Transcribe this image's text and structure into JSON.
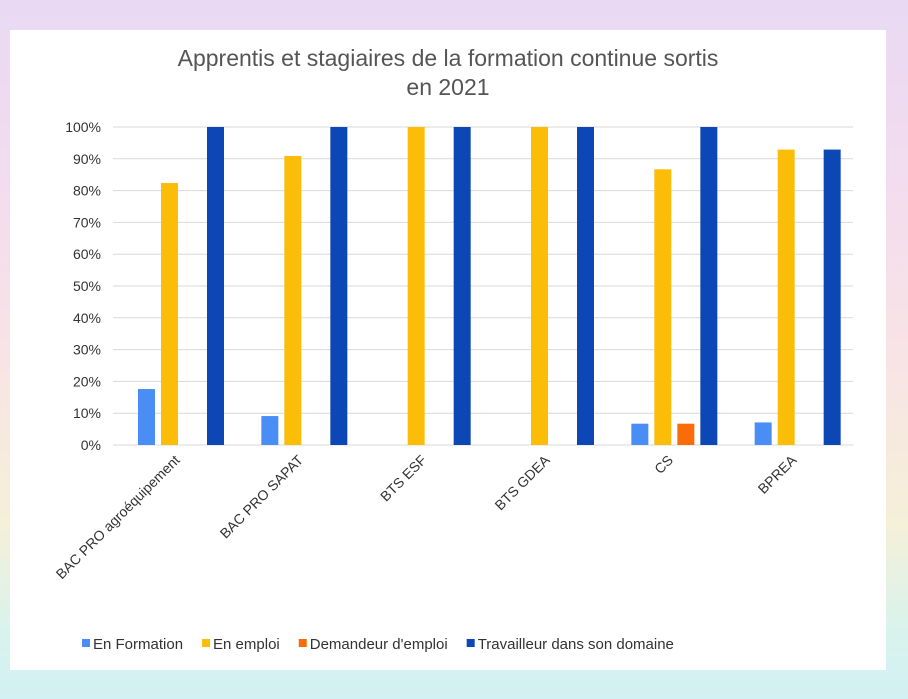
{
  "chart_data": {
    "type": "bar",
    "title": "Apprentis et stagiaires de la formation continue sortis en 2021",
    "title_lines": [
      "Apprentis et stagiaires de la formation continue sortis",
      "en 2021"
    ],
    "categories": [
      "BAC PRO agroéquipement",
      "BAC PRO SAPAT",
      "BTS ESF",
      "BTS GDEA",
      "CS",
      "BPREA"
    ],
    "series": [
      {
        "name": "En Formation",
        "color": "#4a8ef5",
        "values": [
          17.6,
          9.1,
          0,
          0,
          6.7,
          7.1
        ]
      },
      {
        "name": "En emploi",
        "color": "#fbbd08",
        "values": [
          82.4,
          90.9,
          100,
          100,
          86.7,
          92.9
        ]
      },
      {
        "name": "Demandeur d'emploi",
        "color": "#fa6c0a",
        "values": [
          0,
          0,
          0,
          0,
          6.7,
          0
        ]
      },
      {
        "name": "Travailleur dans son domaine",
        "color": "#0d47b5",
        "values": [
          100,
          100,
          100,
          100,
          100,
          92.9
        ]
      }
    ],
    "yticks": [
      "0%",
      "10%",
      "20%",
      "30%",
      "40%",
      "50%",
      "60%",
      "70%",
      "80%",
      "90%",
      "100%"
    ],
    "ylim": [
      0,
      100
    ],
    "grid": true,
    "legend": "bottom"
  }
}
